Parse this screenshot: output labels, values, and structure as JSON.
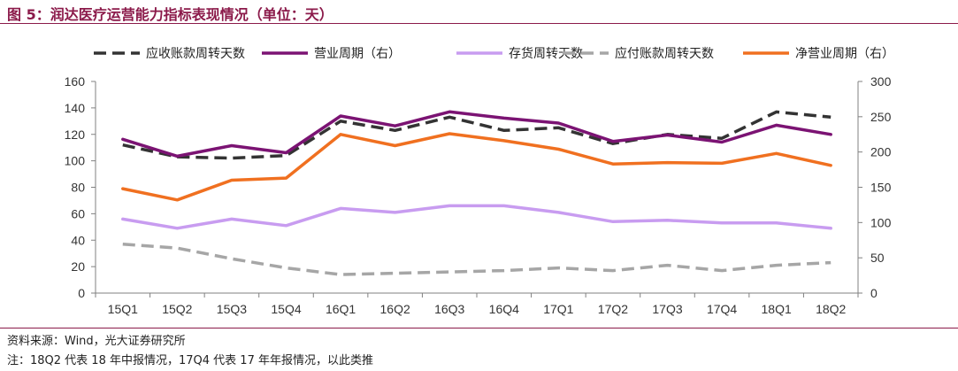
{
  "figure": {
    "title": "图 5：润达医疗运营能力指标表现情况（单位：天）",
    "source": "资料来源：Wind，光大证券研究所",
    "note": "注：18Q2 代表 18 年中报情况，17Q4 代表 17 年年报情况，以此类推"
  },
  "chart_data": {
    "type": "line",
    "categories": [
      "15Q1",
      "15Q2",
      "15Q3",
      "15Q4",
      "16Q1",
      "16Q2",
      "16Q3",
      "16Q4",
      "17Q1",
      "17Q2",
      "17Q3",
      "17Q4",
      "18Q1",
      "18Q2"
    ],
    "y_left": {
      "range": [
        0,
        160
      ],
      "ticks": [
        0,
        20,
        40,
        60,
        80,
        100,
        120,
        140,
        160
      ]
    },
    "y_right": {
      "range": [
        0,
        300
      ],
      "ticks": [
        0,
        50,
        100,
        150,
        200,
        250,
        300
      ]
    },
    "grid": false,
    "legend_position": "top",
    "series": [
      {
        "name": "应收账款周转天数",
        "axis": "left",
        "color": "#333333",
        "dash": true,
        "values": [
          112,
          103,
          102,
          104,
          130,
          123,
          133,
          123,
          125,
          113,
          120,
          117,
          137,
          133
        ]
      },
      {
        "name": "营业周期（右）",
        "axis": "right",
        "color": "#7b1373",
        "dash": false,
        "values": [
          218,
          194,
          209,
          199,
          251,
          237,
          257,
          248,
          241,
          215,
          224,
          214,
          238,
          225
        ]
      },
      {
        "name": "存货周转天数",
        "axis": "left",
        "color": "#c89cf0",
        "dash": false,
        "values": [
          56,
          49,
          56,
          51,
          64,
          61,
          66,
          66,
          61,
          54,
          55,
          53,
          53,
          49
        ]
      },
      {
        "name": "应付账款周转天数",
        "axis": "left",
        "color": "#a6a6a6",
        "dash": true,
        "values": [
          37,
          34,
          26,
          19,
          14,
          15,
          16,
          17,
          19,
          17,
          21,
          17,
          21,
          23
        ]
      },
      {
        "name": "净营业周期（右）",
        "axis": "right",
        "color": "#f07020",
        "dash": false,
        "values": [
          148,
          132,
          160,
          163,
          225,
          209,
          226,
          216,
          204,
          183,
          185,
          184,
          198,
          181
        ]
      }
    ]
  }
}
